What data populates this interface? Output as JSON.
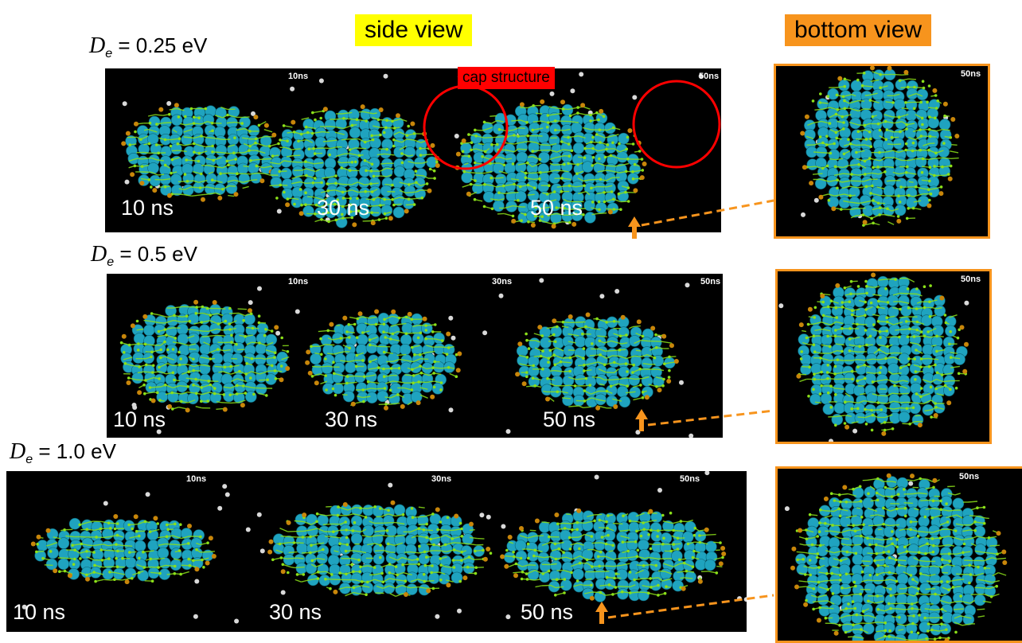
{
  "headers": {
    "side_view": "side view",
    "bottom_view": "bottom view",
    "side_view_color": "#ffff00",
    "bottom_view_color": "#f7941d"
  },
  "annotation": {
    "cap_structure": "cap structure",
    "cap_color": "#ff0000",
    "arrow_color": "#f7941d"
  },
  "rows": [
    {
      "de_symbol": "D",
      "de_sub": "e",
      "de_value": " = 0.25 eV",
      "stamps": [
        "10ns",
        "50ns"
      ],
      "times": [
        "10 ns",
        "30 ns",
        "50 ns"
      ],
      "bottom_stamp": "50ns"
    },
    {
      "de_symbol": "D",
      "de_sub": "e",
      "de_value": " = 0.5 eV",
      "stamps": [
        "10ns",
        "30ns",
        "50ns"
      ],
      "times": [
        "10 ns",
        "30 ns",
        "50 ns"
      ],
      "bottom_stamp": "50ns"
    },
    {
      "de_symbol": "D",
      "de_sub": "e",
      "de_value": " = 1.0 eV",
      "stamps": [
        "10ns",
        "30ns",
        "50ns"
      ],
      "times": [
        "10 ns",
        "30 ns",
        "50 ns"
      ],
      "bottom_stamp": "50ns"
    }
  ],
  "colors": {
    "metal_atom": "#1fa3bf",
    "carbon_network": "#8be01a",
    "edge_atom": "#c8860a",
    "gas_atom": "#d9d9d9",
    "panel_bg": "#000000"
  }
}
